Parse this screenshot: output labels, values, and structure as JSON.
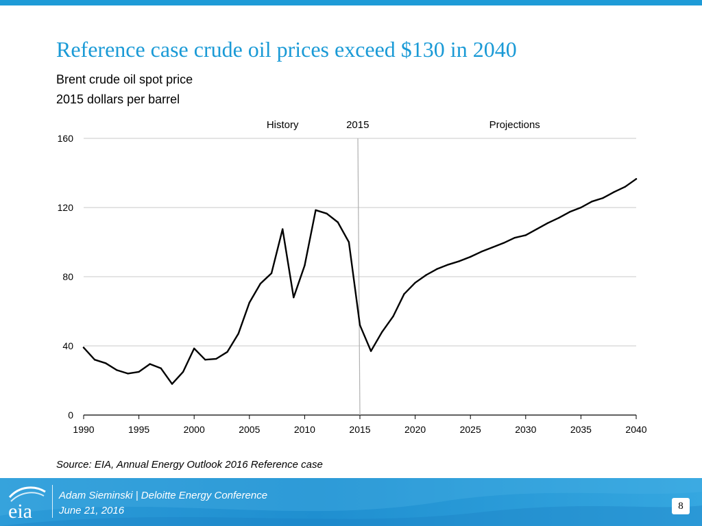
{
  "slide": {
    "title": "Reference case crude oil prices exceed $130 in 2040",
    "subtitle_1": "Brent crude oil spot price",
    "subtitle_2": "2015 dollars per barrel",
    "source": "Source:  EIA, Annual Energy Outlook 2016 Reference case"
  },
  "footer": {
    "logo_text": "eia",
    "presenter": "Adam Sieminski | Deloitte Energy Conference",
    "date": "June 21, 2016",
    "page_number": "8"
  },
  "colors": {
    "accent": "#1a9ad6",
    "footer_blue": "#1f8fd0",
    "line": "#000000",
    "gridline": "#c8c8c8",
    "divider": "#b0b0b0"
  },
  "chart_data": {
    "type": "line",
    "title": "Brent crude oil spot price",
    "ylabel": "2015 dollars per barrel",
    "xlabel": "",
    "xlim": [
      1990,
      2040
    ],
    "ylim": [
      0,
      160
    ],
    "yticks": [
      0,
      40,
      80,
      120,
      160
    ],
    "xticks": [
      1990,
      1995,
      2000,
      2005,
      2010,
      2015,
      2020,
      2025,
      2030,
      2035,
      2040
    ],
    "grid": true,
    "annotations": [
      {
        "text": "History",
        "x": 2008
      },
      {
        "text": "2015",
        "x": 2014.8
      },
      {
        "text": "Projections",
        "x": 2029
      }
    ],
    "divider_year": 2015,
    "series": [
      {
        "name": "Brent crude oil spot price",
        "x": [
          1990,
          1991,
          1992,
          1993,
          1994,
          1995,
          1996,
          1997,
          1998,
          1999,
          2000,
          2001,
          2002,
          2003,
          2004,
          2005,
          2006,
          2007,
          2008,
          2009,
          2010,
          2011,
          2012,
          2013,
          2014,
          2015,
          2016,
          2017,
          2018,
          2019,
          2020,
          2021,
          2022,
          2023,
          2024,
          2025,
          2026,
          2027,
          2028,
          2029,
          2030,
          2031,
          2032,
          2033,
          2034,
          2035,
          2036,
          2037,
          2038,
          2039,
          2040
        ],
        "values": [
          39,
          32,
          30,
          26,
          24,
          25,
          29.5,
          27,
          18,
          25,
          38.5,
          32,
          32.5,
          36.5,
          47,
          65,
          76,
          82,
          107.5,
          68,
          86.5,
          118.5,
          116.5,
          111.5,
          100,
          52,
          37,
          48,
          57,
          70,
          76.5,
          81,
          84.5,
          87,
          89,
          91.5,
          94.5,
          97,
          99.5,
          102.5,
          104,
          107.5,
          111,
          114,
          117.5,
          120,
          123.5,
          125.5,
          129,
          132,
          136.5
        ]
      }
    ]
  }
}
